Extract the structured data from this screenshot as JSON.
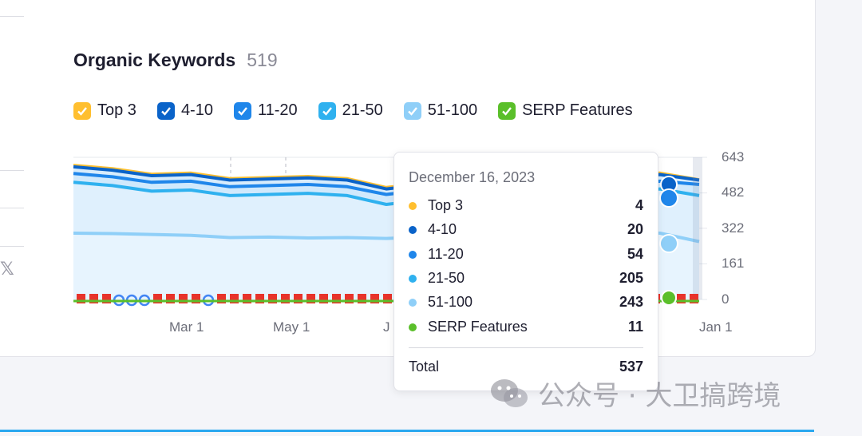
{
  "widget": {
    "title": "Organic Keywords",
    "count": "519"
  },
  "legend": [
    {
      "label": "Top 3",
      "color": "#ffbf2f"
    },
    {
      "label": "4-10",
      "color": "#0a63c9"
    },
    {
      "label": "11-20",
      "color": "#1f86ea"
    },
    {
      "label": "21-50",
      "color": "#2fb1ef"
    },
    {
      "label": "51-100",
      "color": "#8fcff8"
    },
    {
      "label": "SERP Features",
      "color": "#5abf2a"
    }
  ],
  "chart_data": {
    "type": "area",
    "stacked": true,
    "x_tick_labels": [
      "Mar 1",
      "May 1",
      "J",
      "Jan 1"
    ],
    "y_tick_labels": [
      "643",
      "482",
      "322",
      "161",
      "0"
    ],
    "ylim": [
      0,
      643
    ],
    "series": [
      {
        "name": "51-100",
        "values": [
          300,
          298,
          294,
          290,
          280,
          282,
          278,
          280,
          276,
          283,
          290,
          300,
          305,
          306,
          308,
          300,
          262
        ]
      },
      {
        "name": "21-50",
        "values": [
          530,
          515,
          490,
          495,
          470,
          475,
          480,
          470,
          430,
          450,
          470,
          480,
          485,
          487,
          490,
          500,
          470
        ]
      },
      {
        "name": "11-20",
        "values": [
          570,
          555,
          530,
          535,
          510,
          515,
          520,
          510,
          475,
          495,
          510,
          520,
          525,
          527,
          528,
          535,
          520
        ]
      },
      {
        "name": "4-10",
        "values": [
          600,
          585,
          560,
          565,
          540,
          545,
          550,
          540,
          500,
          520,
          540,
          550,
          555,
          557,
          560,
          565,
          540
        ]
      },
      {
        "name": "Top 3",
        "values": [
          610,
          595,
          570,
          575,
          550,
          555,
          560,
          550,
          510,
          530,
          550,
          560,
          565,
          567,
          570,
          575,
          545
        ]
      }
    ]
  },
  "tooltip": {
    "date": "December 16, 2023",
    "rows": [
      {
        "label": "Top 3",
        "value": "4",
        "color": "#ffbf2f"
      },
      {
        "label": "4-10",
        "value": "20",
        "color": "#0a63c9"
      },
      {
        "label": "11-20",
        "value": "54",
        "color": "#1f86ea"
      },
      {
        "label": "21-50",
        "value": "205",
        "color": "#2fb1ef"
      },
      {
        "label": "51-100",
        "value": "243",
        "color": "#8fcff8"
      },
      {
        "label": "SERP Features",
        "value": "11",
        "color": "#5abf2a"
      }
    ],
    "total_label": "Total",
    "total_value": "537"
  },
  "watermark": {
    "text": "公众号 · 大卫搞跨境"
  }
}
